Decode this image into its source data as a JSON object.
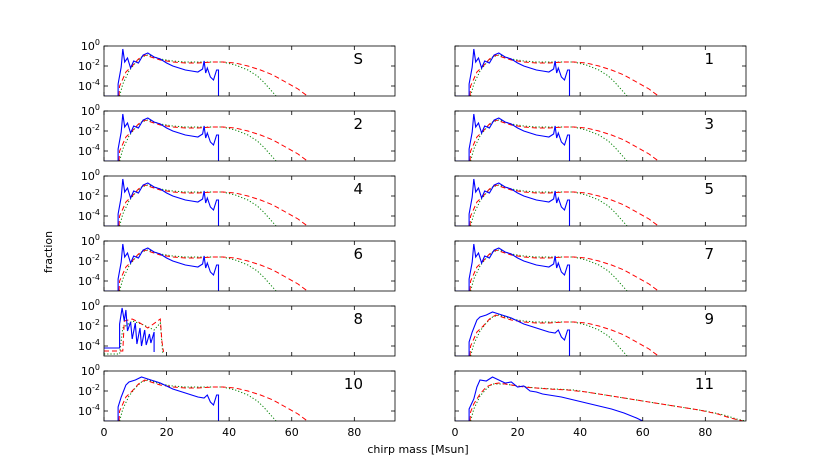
{
  "chart_data": {
    "type": "line",
    "title": "",
    "xlabel": "chirp mass [Msun]",
    "ylabel": "fraction",
    "xlim": [
      0,
      93
    ],
    "ylim_log10": [
      -5,
      0
    ],
    "x_ticks": [
      0,
      20,
      40,
      60,
      80
    ],
    "y_ticks": [
      {
        "base": "10",
        "exp": "0",
        "value": 1
      },
      {
        "base": "10",
        "exp": "-2",
        "value": 0.01
      },
      {
        "base": "10",
        "exp": "-4",
        "value": 0.0001
      }
    ],
    "series_styles": [
      {
        "name": "solid",
        "color": "#0000ff",
        "dash": ""
      },
      {
        "name": "dashed",
        "color": "#ff0000",
        "dash": "5,3"
      },
      {
        "name": "dotted",
        "color": "#008000",
        "dash": "1.2,2"
      }
    ],
    "panels": [
      {
        "label": "S",
        "variant": "standard"
      },
      {
        "label": "1",
        "variant": "standard"
      },
      {
        "label": "2",
        "variant": "standard"
      },
      {
        "label": "3",
        "variant": "standard"
      },
      {
        "label": "4",
        "variant": "standard"
      },
      {
        "label": "5",
        "variant": "standard"
      },
      {
        "label": "6",
        "variant": "standard"
      },
      {
        "label": "7",
        "variant": "standard"
      },
      {
        "label": "8",
        "variant": "truncated"
      },
      {
        "label": "9",
        "variant": "smooth"
      },
      {
        "label": "10",
        "variant": "smooth"
      },
      {
        "label": "11",
        "variant": "wide"
      }
    ],
    "curves": {
      "standard": {
        "solid": [
          [
            0,
            -5.2
          ],
          [
            4.5,
            -5.2
          ],
          [
            4.5,
            -3.8
          ],
          [
            5.5,
            -2.1
          ],
          [
            6,
            -0.3
          ],
          [
            6.6,
            -1.6
          ],
          [
            7.5,
            -1.2
          ],
          [
            8.5,
            -2.2
          ],
          [
            9.5,
            -1.5
          ],
          [
            11,
            -1.7
          ],
          [
            12.5,
            -0.9
          ],
          [
            14,
            -0.7
          ],
          [
            16,
            -1.1
          ],
          [
            18,
            -1.3
          ],
          [
            20,
            -1.7
          ],
          [
            22,
            -2.0
          ],
          [
            24,
            -2.2
          ],
          [
            26,
            -2.4
          ],
          [
            28,
            -2.5
          ],
          [
            30,
            -2.6
          ],
          [
            31.5,
            -2.3
          ],
          [
            32,
            -1.5
          ],
          [
            32.5,
            -2.7
          ],
          [
            33,
            -2.2
          ],
          [
            34,
            -3.1
          ],
          [
            35,
            -3.4
          ],
          [
            36,
            -2.4
          ],
          [
            36.6,
            -2.4
          ],
          [
            36.6,
            -5.2
          ]
        ],
        "dashed": [
          [
            4.8,
            -5.2
          ],
          [
            5,
            -4.0
          ],
          [
            6,
            -3.3
          ],
          [
            7,
            -2.6
          ],
          [
            9,
            -2.0
          ],
          [
            11,
            -1.3
          ],
          [
            13,
            -0.9
          ],
          [
            15,
            -1.1
          ],
          [
            18,
            -1.4
          ],
          [
            22,
            -1.6
          ],
          [
            26,
            -1.7
          ],
          [
            30,
            -1.7
          ],
          [
            35,
            -1.6
          ],
          [
            38,
            -1.6
          ],
          [
            42,
            -1.7
          ],
          [
            46,
            -2.0
          ],
          [
            50,
            -2.4
          ],
          [
            54,
            -2.9
          ],
          [
            58,
            -3.6
          ],
          [
            62,
            -4.3
          ],
          [
            65,
            -5.2
          ]
        ],
        "dotted": [
          [
            5,
            -5.2
          ],
          [
            6,
            -3.8
          ],
          [
            8,
            -2.5
          ],
          [
            10,
            -1.7
          ],
          [
            12,
            -1.1
          ],
          [
            14,
            -0.9
          ],
          [
            18,
            -1.3
          ],
          [
            22,
            -1.5
          ],
          [
            26,
            -1.6
          ],
          [
            30,
            -1.6
          ],
          [
            34,
            -1.6
          ],
          [
            38,
            -1.6
          ],
          [
            42,
            -1.9
          ],
          [
            46,
            -2.4
          ],
          [
            49,
            -3.0
          ],
          [
            51,
            -3.6
          ],
          [
            53,
            -4.3
          ],
          [
            55,
            -5.2
          ]
        ]
      },
      "truncated": {
        "solid": [
          [
            0,
            -4.2
          ],
          [
            5,
            -4.2
          ],
          [
            5,
            -1.8
          ],
          [
            5.8,
            -0.2
          ],
          [
            6.5,
            -1.5
          ],
          [
            7,
            -0.4
          ],
          [
            7.5,
            -2.5
          ],
          [
            8.5,
            -1.6
          ],
          [
            9,
            -3.3
          ],
          [
            10,
            -1.7
          ],
          [
            10.5,
            -3.8
          ],
          [
            11.5,
            -2.2
          ],
          [
            12,
            -4.0
          ],
          [
            13,
            -2.4
          ],
          [
            13.5,
            -3.9
          ],
          [
            14.5,
            -2.8
          ],
          [
            15,
            -3.7
          ],
          [
            16,
            -2.6
          ],
          [
            16,
            -4.6
          ]
        ],
        "dashed": [
          [
            0,
            -4.5
          ],
          [
            6,
            -4.5
          ],
          [
            6.5,
            -1.5
          ],
          [
            9,
            -1.3
          ],
          [
            11,
            -1.6
          ],
          [
            14,
            -2.2
          ],
          [
            18,
            -1.3
          ],
          [
            18.5,
            -3.5
          ],
          [
            19,
            -4.6
          ]
        ],
        "dotted": [
          [
            0,
            -4.8
          ],
          [
            5,
            -4.8
          ],
          [
            6,
            -2.2
          ],
          [
            9,
            -1.5
          ],
          [
            12,
            -1.8
          ],
          [
            16,
            -2.4
          ],
          [
            18,
            -1.7
          ],
          [
            18.8,
            -4.8
          ]
        ]
      },
      "smooth": {
        "solid": [
          [
            0,
            -5.2
          ],
          [
            4.5,
            -5.2
          ],
          [
            4.5,
            -3.6
          ],
          [
            5.5,
            -2.6
          ],
          [
            7,
            -1.4
          ],
          [
            8,
            -1.1
          ],
          [
            10,
            -0.9
          ],
          [
            12,
            -0.6
          ],
          [
            13,
            -0.7
          ],
          [
            14,
            -0.8
          ],
          [
            16,
            -1.0
          ],
          [
            18,
            -1.2
          ],
          [
            20,
            -1.5
          ],
          [
            22,
            -1.8
          ],
          [
            24,
            -2.0
          ],
          [
            26,
            -2.2
          ],
          [
            28,
            -2.4
          ],
          [
            30,
            -2.6
          ],
          [
            32,
            -2.7
          ],
          [
            33,
            -2.4
          ],
          [
            34,
            -3.1
          ],
          [
            35,
            -3.4
          ],
          [
            36,
            -2.4
          ],
          [
            36.6,
            -2.4
          ],
          [
            36.6,
            -5.2
          ]
        ],
        "dashed": [
          [
            4.8,
            -5.2
          ],
          [
            5,
            -4.0
          ],
          [
            6,
            -3.3
          ],
          [
            7,
            -2.6
          ],
          [
            9,
            -2.0
          ],
          [
            11,
            -1.3
          ],
          [
            13,
            -0.9
          ],
          [
            15,
            -1.1
          ],
          [
            18,
            -1.4
          ],
          [
            22,
            -1.6
          ],
          [
            26,
            -1.7
          ],
          [
            30,
            -1.7
          ],
          [
            35,
            -1.6
          ],
          [
            38,
            -1.6
          ],
          [
            42,
            -1.7
          ],
          [
            46,
            -2.0
          ],
          [
            50,
            -2.4
          ],
          [
            54,
            -2.9
          ],
          [
            58,
            -3.6
          ],
          [
            62,
            -4.3
          ],
          [
            65,
            -5.2
          ]
        ],
        "dotted": [
          [
            5,
            -5.2
          ],
          [
            6,
            -3.8
          ],
          [
            8,
            -2.5
          ],
          [
            10,
            -1.7
          ],
          [
            12,
            -1.1
          ],
          [
            14,
            -0.9
          ],
          [
            18,
            -1.3
          ],
          [
            22,
            -1.5
          ],
          [
            26,
            -1.6
          ],
          [
            30,
            -1.6
          ],
          [
            34,
            -1.6
          ],
          [
            38,
            -1.6
          ],
          [
            42,
            -1.9
          ],
          [
            46,
            -2.4
          ],
          [
            49,
            -3.0
          ],
          [
            51,
            -3.6
          ],
          [
            53,
            -4.3
          ],
          [
            55,
            -5.2
          ]
        ]
      },
      "wide": {
        "solid": [
          [
            0,
            -5.2
          ],
          [
            4.5,
            -5.2
          ],
          [
            4.5,
            -3.8
          ],
          [
            6,
            -2.8
          ],
          [
            7,
            -1.6
          ],
          [
            8,
            -0.9
          ],
          [
            10,
            -1.0
          ],
          [
            12,
            -0.6
          ],
          [
            14,
            -0.9
          ],
          [
            16,
            -1.2
          ],
          [
            18,
            -1.1
          ],
          [
            20,
            -1.6
          ],
          [
            22,
            -1.5
          ],
          [
            24,
            -2.0
          ],
          [
            26,
            -2.1
          ],
          [
            28,
            -2.3
          ],
          [
            30,
            -2.4
          ],
          [
            34,
            -2.6
          ],
          [
            38,
            -2.9
          ],
          [
            42,
            -3.2
          ],
          [
            46,
            -3.5
          ],
          [
            50,
            -3.8
          ],
          [
            54,
            -4.2
          ],
          [
            58,
            -4.7
          ],
          [
            60,
            -5.2
          ]
        ],
        "dashed": [
          [
            4.8,
            -5.2
          ],
          [
            5,
            -4.1
          ],
          [
            6,
            -3.3
          ],
          [
            8,
            -2.3
          ],
          [
            10,
            -1.6
          ],
          [
            12,
            -1.3
          ],
          [
            14,
            -1.2
          ],
          [
            18,
            -1.4
          ],
          [
            22,
            -1.6
          ],
          [
            26,
            -1.7
          ],
          [
            30,
            -1.8
          ],
          [
            36,
            -1.9
          ],
          [
            42,
            -2.1
          ],
          [
            48,
            -2.4
          ],
          [
            54,
            -2.7
          ],
          [
            60,
            -3.0
          ],
          [
            66,
            -3.3
          ],
          [
            72,
            -3.6
          ],
          [
            78,
            -3.9
          ],
          [
            84,
            -4.3
          ],
          [
            88,
            -4.7
          ],
          [
            92,
            -5.2
          ]
        ],
        "dotted": [
          [
            5,
            -5.2
          ],
          [
            6,
            -3.8
          ],
          [
            8,
            -2.5
          ],
          [
            10,
            -1.8
          ],
          [
            12,
            -1.3
          ],
          [
            16,
            -1.3
          ],
          [
            20,
            -1.5
          ],
          [
            26,
            -1.7
          ],
          [
            32,
            -1.8
          ],
          [
            38,
            -1.9
          ],
          [
            44,
            -2.2
          ],
          [
            50,
            -2.5
          ],
          [
            56,
            -2.8
          ],
          [
            62,
            -3.1
          ],
          [
            68,
            -3.4
          ],
          [
            74,
            -3.7
          ],
          [
            80,
            -4.0
          ],
          [
            86,
            -4.4
          ],
          [
            90,
            -4.8
          ],
          [
            93,
            -5.1
          ]
        ]
      }
    }
  }
}
